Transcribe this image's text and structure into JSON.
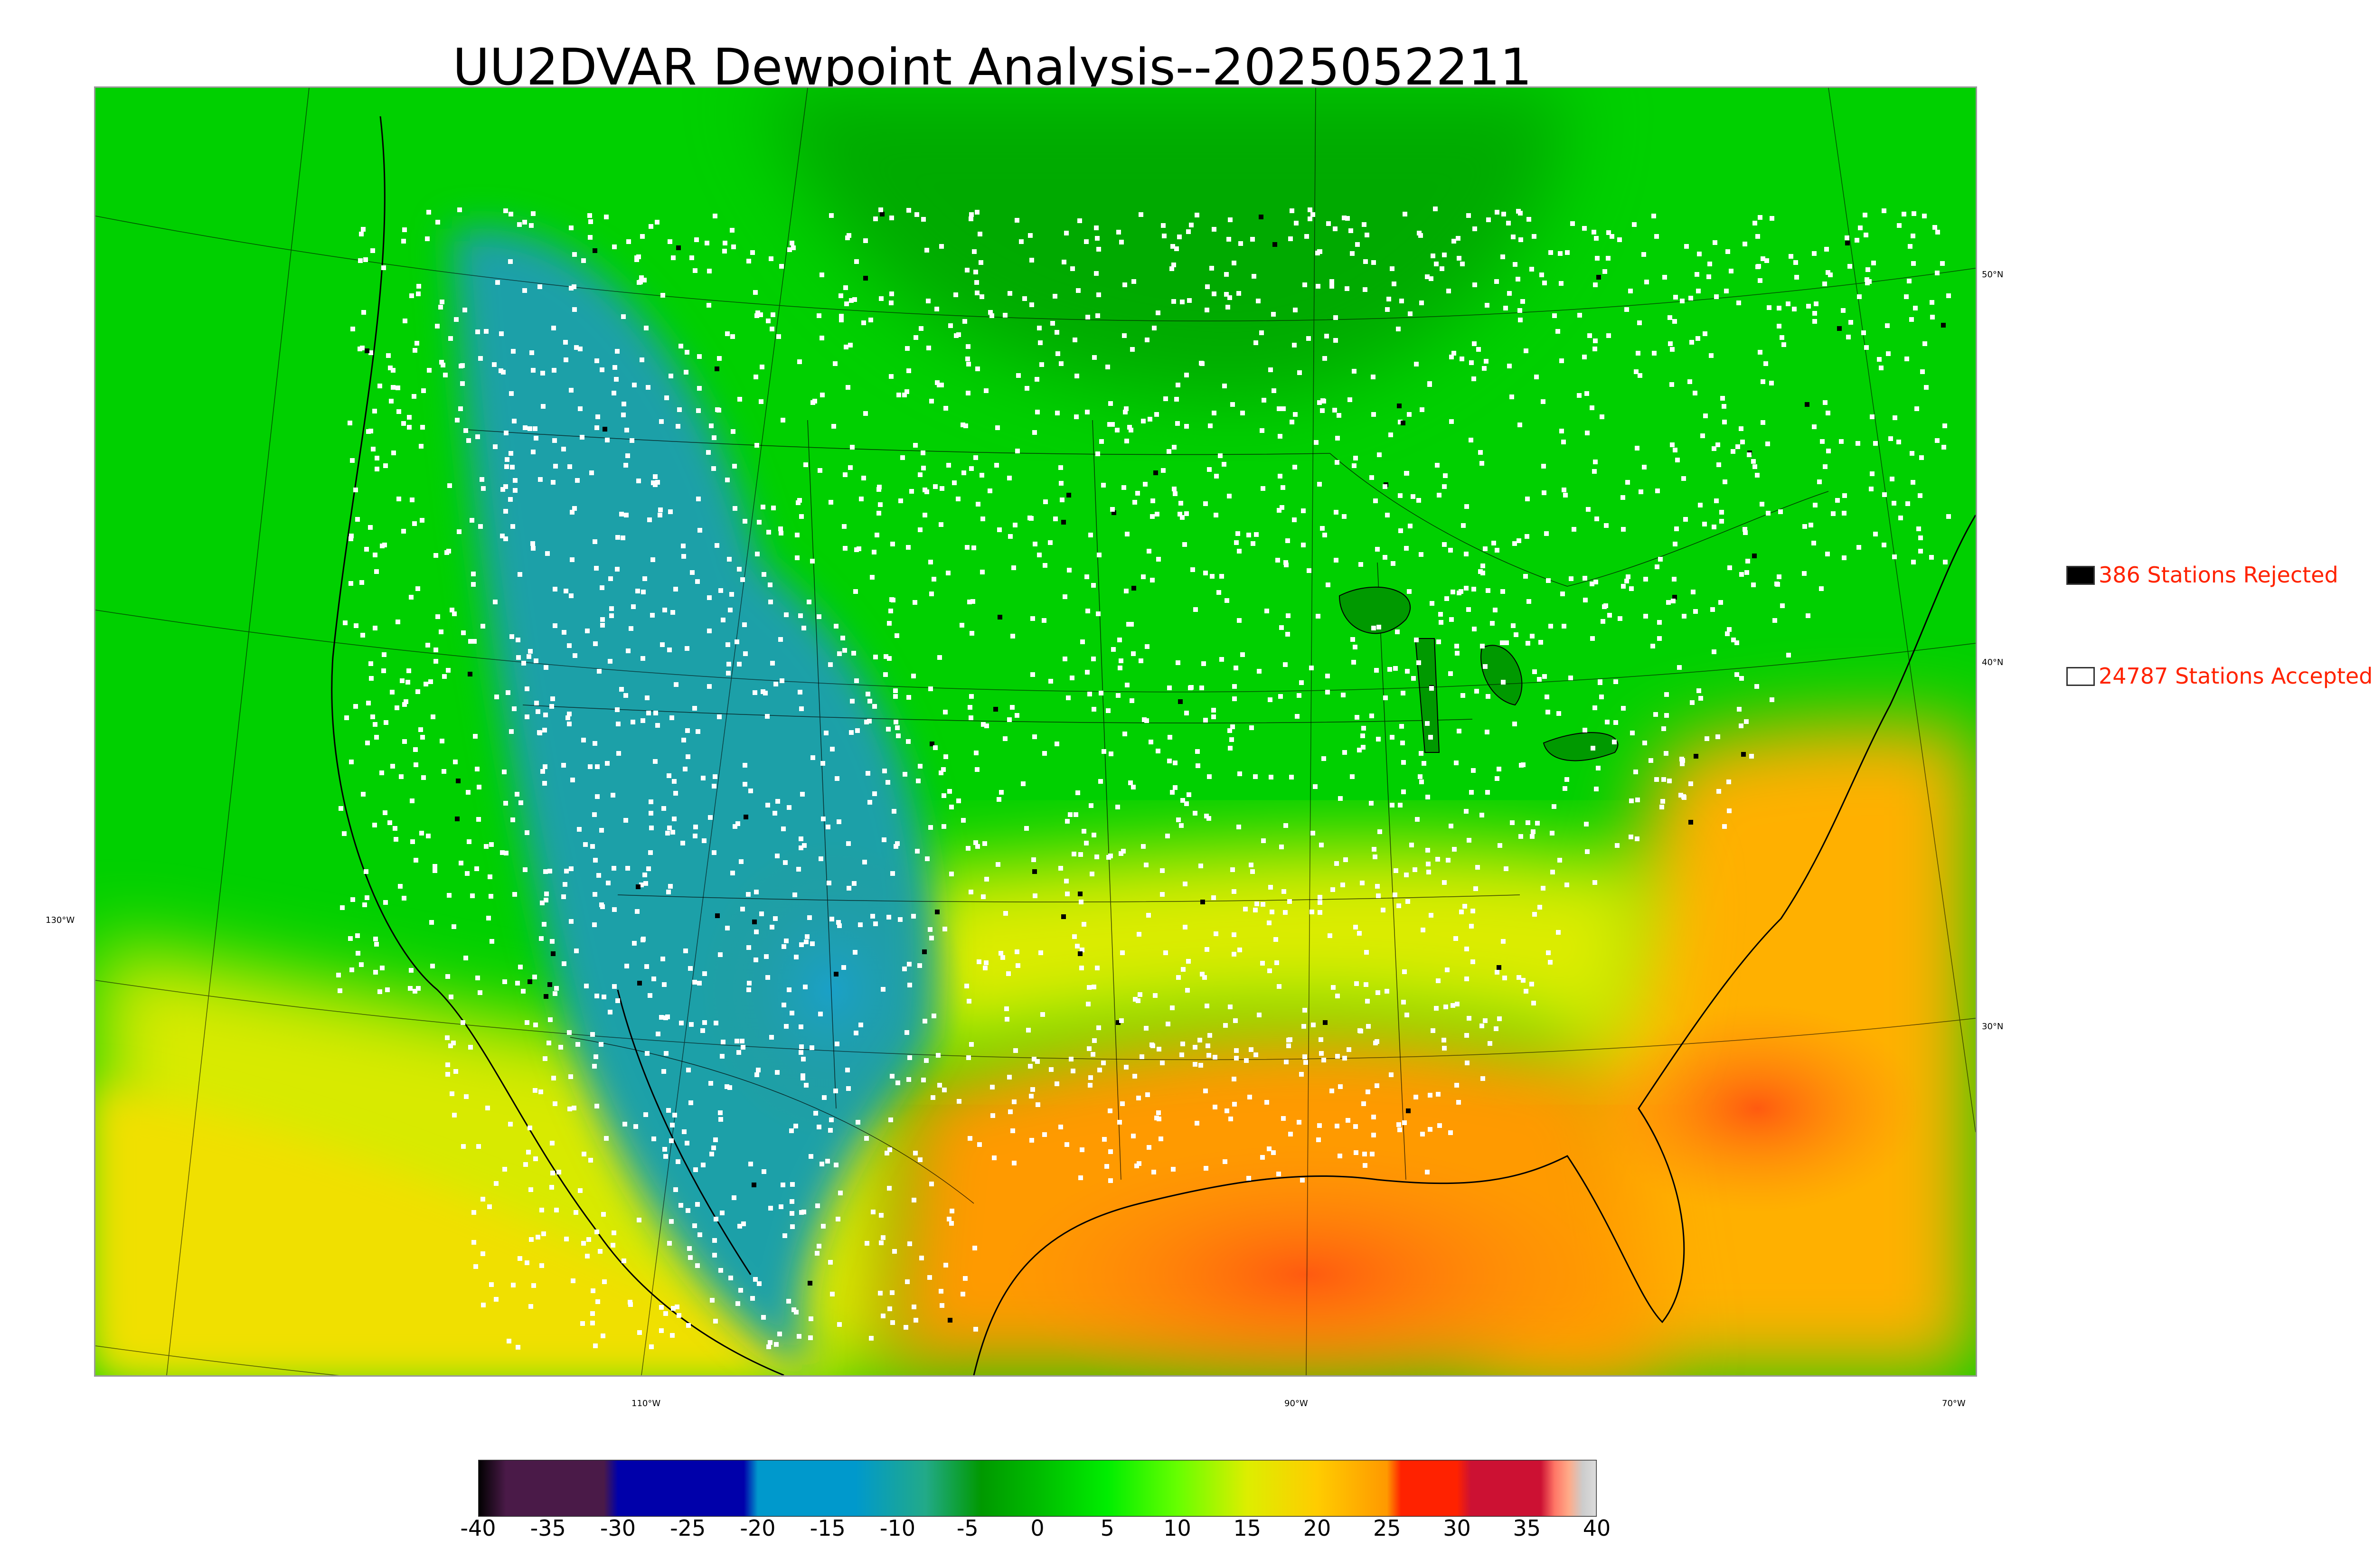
{
  "title": "UU2DVAR Dewpoint Analysis--2025052211",
  "legend": {
    "rejected": {
      "count_text": "386 Stations Rejected",
      "color": "#000000"
    },
    "accepted": {
      "count_text": "24787 Stations Accepted",
      "color": "#ffffff"
    }
  },
  "graticule": {
    "lat_labels": [
      "50°N",
      "40°N",
      "30°N"
    ],
    "lon_labels": [
      "130°W",
      "110°W",
      "90°W",
      "70°W"
    ]
  },
  "colorbar": {
    "ticks": [
      "-40",
      "-35",
      "-30",
      "-25",
      "-20",
      "-15",
      "-10",
      "-5",
      "0",
      "5",
      "10",
      "15",
      "20",
      "25",
      "30",
      "35",
      "40"
    ],
    "range": [
      -40,
      40
    ],
    "stops": [
      {
        "v": -40,
        "c": "#000000"
      },
      {
        "v": -38,
        "c": "#4a1a48"
      },
      {
        "v": -31,
        "c": "#4a1a48"
      },
      {
        "v": -30,
        "c": "#0000aa"
      },
      {
        "v": -21,
        "c": "#0000aa"
      },
      {
        "v": -20,
        "c": "#0099cc"
      },
      {
        "v": -13,
        "c": "#0099cc"
      },
      {
        "v": -8,
        "c": "#22aa88"
      },
      {
        "v": -4,
        "c": "#009900"
      },
      {
        "v": 0,
        "c": "#00bb00"
      },
      {
        "v": 5,
        "c": "#00ee00"
      },
      {
        "v": 10,
        "c": "#66ff00"
      },
      {
        "v": 15,
        "c": "#ddee00"
      },
      {
        "v": 20,
        "c": "#ffcc00"
      },
      {
        "v": 25,
        "c": "#ff9900"
      },
      {
        "v": 26,
        "c": "#ff2200"
      },
      {
        "v": 30,
        "c": "#ff2200"
      },
      {
        "v": 31,
        "c": "#cc1133"
      },
      {
        "v": 36,
        "c": "#cc1133"
      },
      {
        "v": 37,
        "c": "#ff7766"
      },
      {
        "v": 38,
        "c": "#ffaa88"
      },
      {
        "v": 39,
        "c": "#cccccc"
      },
      {
        "v": 40,
        "c": "#dddddd"
      }
    ]
  },
  "field_colors": {
    "dry_interior": "#1f9aa8",
    "forest_green": "#07b207",
    "bright_green": "#00e000",
    "yellow_green": "#b8ee00",
    "yellow": "#f2e400",
    "orange": "#ffb000",
    "red_orange": "#ff6a10"
  }
}
